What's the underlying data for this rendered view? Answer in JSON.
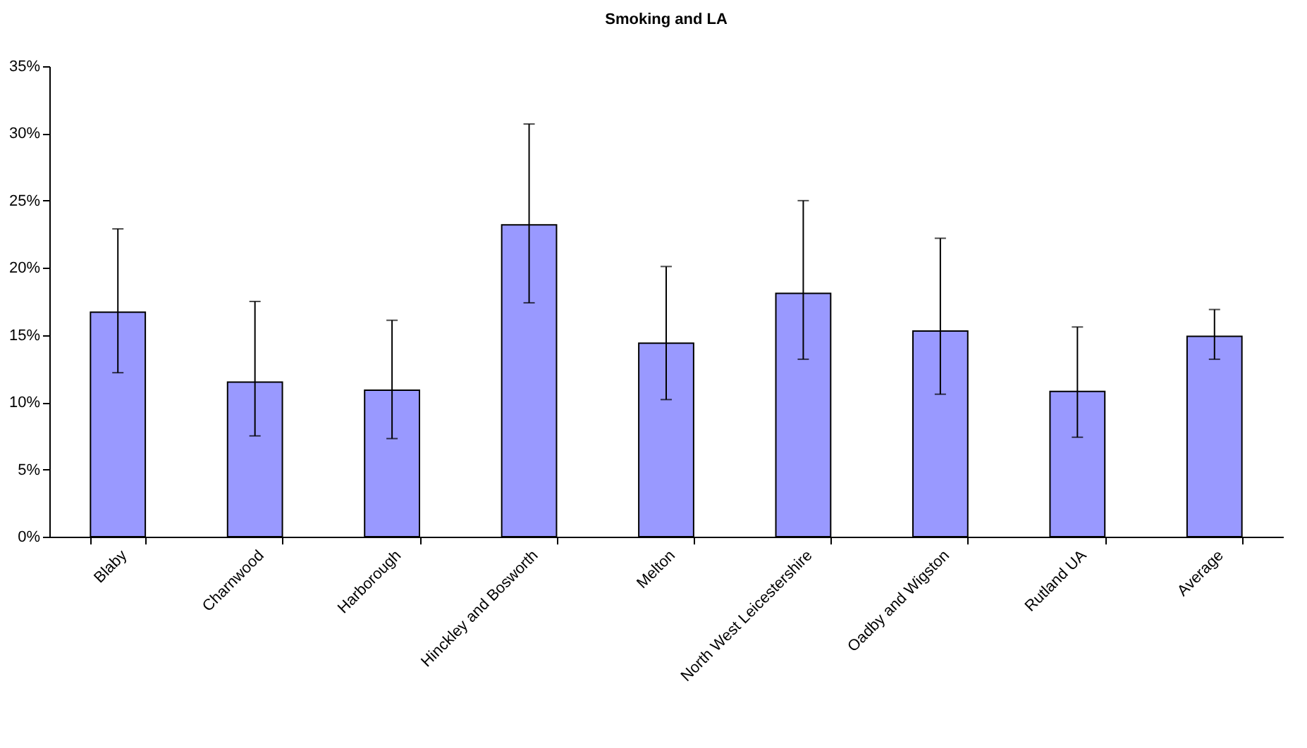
{
  "chart_data": {
    "type": "bar",
    "title": "Smoking and LA",
    "categories": [
      "Blaby",
      "Charnwood",
      "Harborough",
      "Hinckley and Bosworth",
      "Melton",
      "North West Leicestershire",
      "Oadby and Wigston",
      "Rutland UA",
      "Average"
    ],
    "values": [
      16.7,
      11.5,
      10.9,
      23.2,
      14.4,
      18.1,
      15.3,
      10.8,
      14.9
    ],
    "errors": [
      [
        12.2,
        22.9
      ],
      [
        7.5,
        17.5
      ],
      [
        7.3,
        16.1
      ],
      [
        17.4,
        30.7
      ],
      [
        10.2,
        20.1
      ],
      [
        13.2,
        25.0
      ],
      [
        10.6,
        22.2
      ],
      [
        7.4,
        15.6
      ],
      [
        13.2,
        16.9
      ]
    ],
    "color": "#9999ff",
    "ylim": [
      0,
      35
    ],
    "yticks": [
      {
        "value": 0,
        "label": "0%"
      },
      {
        "value": 5,
        "label": "5%"
      },
      {
        "value": 10,
        "label": "10%"
      },
      {
        "value": 15,
        "label": "15%"
      },
      {
        "value": 20,
        "label": "20%"
      },
      {
        "value": 25,
        "label": "25%"
      },
      {
        "value": 30,
        "label": "30%"
      },
      {
        "value": 35,
        "label": "35%"
      }
    ],
    "grid": false
  }
}
